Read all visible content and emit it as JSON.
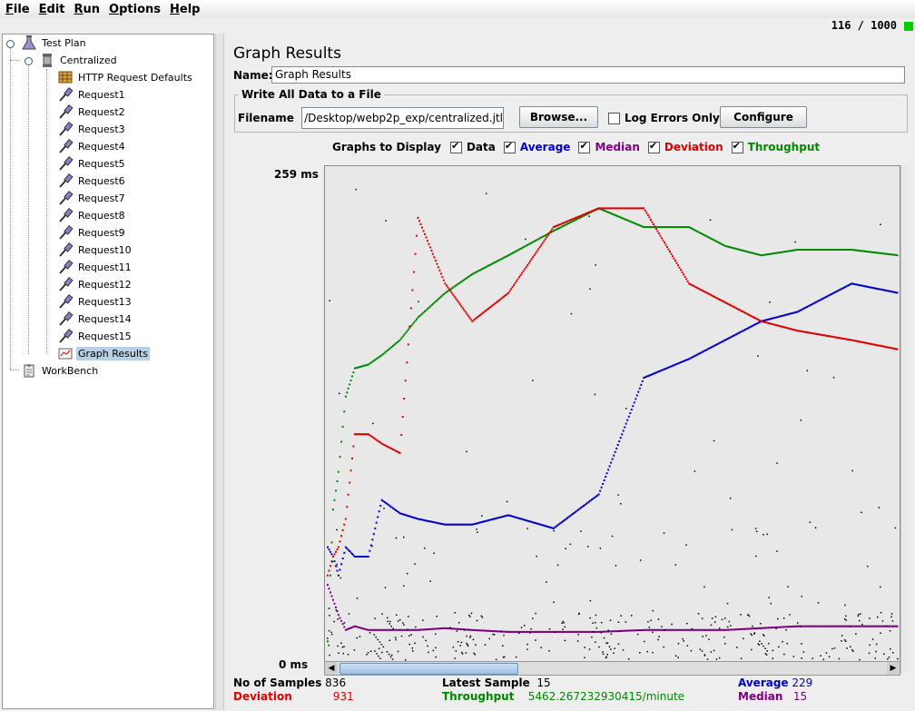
{
  "menu": [
    {
      "mnemonic": "F",
      "rest": "ile"
    },
    {
      "mnemonic": "E",
      "rest": "dit"
    },
    {
      "mnemonic": "R",
      "rest": "un"
    },
    {
      "mnemonic": "O",
      "rest": "ptions"
    },
    {
      "mnemonic": "H",
      "rest": "elp"
    }
  ],
  "status": {
    "threads": "116 / 1000",
    "light_color": "#00cc00"
  },
  "tree": {
    "test_plan": "Test Plan",
    "centralized": "Centralized",
    "defaults": "HTTP Request Defaults",
    "requests": [
      "Request1",
      "Request2",
      "Request3",
      "Request4",
      "Request5",
      "Request6",
      "Request7",
      "Request8",
      "Request9",
      "Request10",
      "Request11",
      "Request12",
      "Request13",
      "Request14",
      "Request15"
    ],
    "graph_results": "Graph Results",
    "workbench": "WorkBench"
  },
  "panel": {
    "title": "Graph Results",
    "name_label": "Name:",
    "name_value": "Graph Results",
    "file_section": "Write All Data to a File",
    "filename_label": "Filename",
    "filename_value": "/Desktop/webp2p_exp/centralized.jtl",
    "browse": "Browse...",
    "log_errors": "Log Errors Only",
    "configure": "Configure"
  },
  "graphs_to_display": {
    "label": "Graphs to Display",
    "items": [
      {
        "label": "Data",
        "color": "#000000",
        "checked": true
      },
      {
        "label": "Average",
        "color": "#0000cc",
        "checked": true
      },
      {
        "label": "Median",
        "color": "#800080",
        "checked": true
      },
      {
        "label": "Deviation",
        "color": "#dd0000",
        "checked": true
      },
      {
        "label": "Throughput",
        "color": "#008800",
        "checked": true
      }
    ]
  },
  "chart_data": {
    "type": "scatter",
    "y_max_label": "259 ms",
    "y_min_label": "0 ms",
    "ylim": [
      0,
      259
    ],
    "x": [
      0,
      6,
      12,
      20,
      30,
      45,
      60,
      80,
      100,
      130,
      160,
      200,
      250,
      300,
      350,
      400,
      440,
      480,
      520,
      580,
      632
    ],
    "series": [
      {
        "name": "Throughput",
        "color": "#008800",
        "values": [
          10,
          80,
          100,
          140,
          155,
          157,
          162,
          170,
          182,
          195,
          205,
          215,
          228,
          240,
          230,
          230,
          220,
          215,
          218,
          218,
          215
        ]
      },
      {
        "name": "Average",
        "color": "#0000cc",
        "values": [
          60,
          55,
          45,
          60,
          55,
          55,
          85,
          78,
          75,
          72,
          72,
          77,
          70,
          88,
          150,
          160,
          170,
          180,
          185,
          200,
          195
        ]
      },
      {
        "name": "Deviation",
        "color": "#dd0000",
        "values": [
          45,
          55,
          60,
          75,
          120,
          120,
          115,
          110,
          235,
          200,
          180,
          195,
          230,
          240,
          240,
          200,
          190,
          180,
          175,
          170,
          165
        ]
      },
      {
        "name": "Median",
        "color": "#800080",
        "values": [
          40,
          32,
          24,
          16,
          18,
          16,
          16,
          16,
          16,
          17,
          16,
          15,
          15,
          15,
          16,
          16,
          16,
          17,
          18,
          18,
          18
        ]
      }
    ]
  },
  "stats": {
    "samples_label": "No of Samples",
    "samples_value": "836",
    "deviation_label": "Deviation",
    "deviation_value": "931",
    "latest_label": "Latest Sample",
    "latest_value": "15",
    "throughput_label": "Throughput",
    "throughput_value": "5462.267232930415/minute",
    "average_label": "Average",
    "average_value": "229",
    "median_label": "Median",
    "median_value": "15"
  }
}
